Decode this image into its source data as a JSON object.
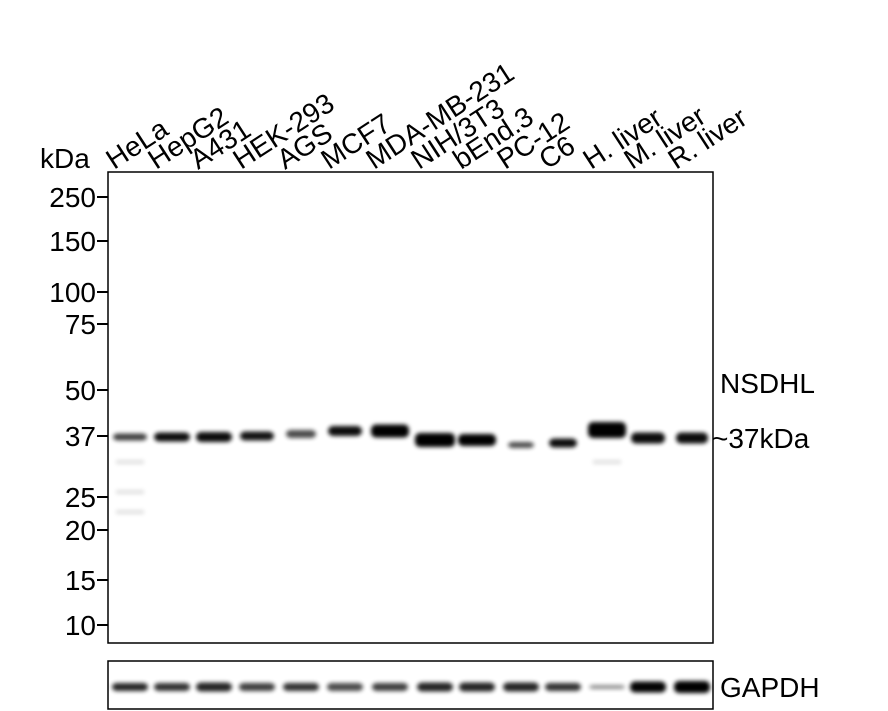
{
  "blot": {
    "size_unit": "kDa",
    "lanes": [
      "HeLa",
      "HepG2",
      "A431",
      "HEK-293",
      "AGS",
      "MCF7",
      "MDA-MB-231",
      "NIH/3T3",
      "bEnd.3",
      "PC-12",
      "C6",
      "H. liver",
      "M. liver",
      "R. liver"
    ],
    "markers": [
      "250",
      "150",
      "100",
      "75",
      "50",
      "37",
      "25",
      "20",
      "15",
      "10"
    ],
    "target": "NSDHL",
    "band_size": "~37kDa",
    "loading_control": "GAPDH"
  }
}
